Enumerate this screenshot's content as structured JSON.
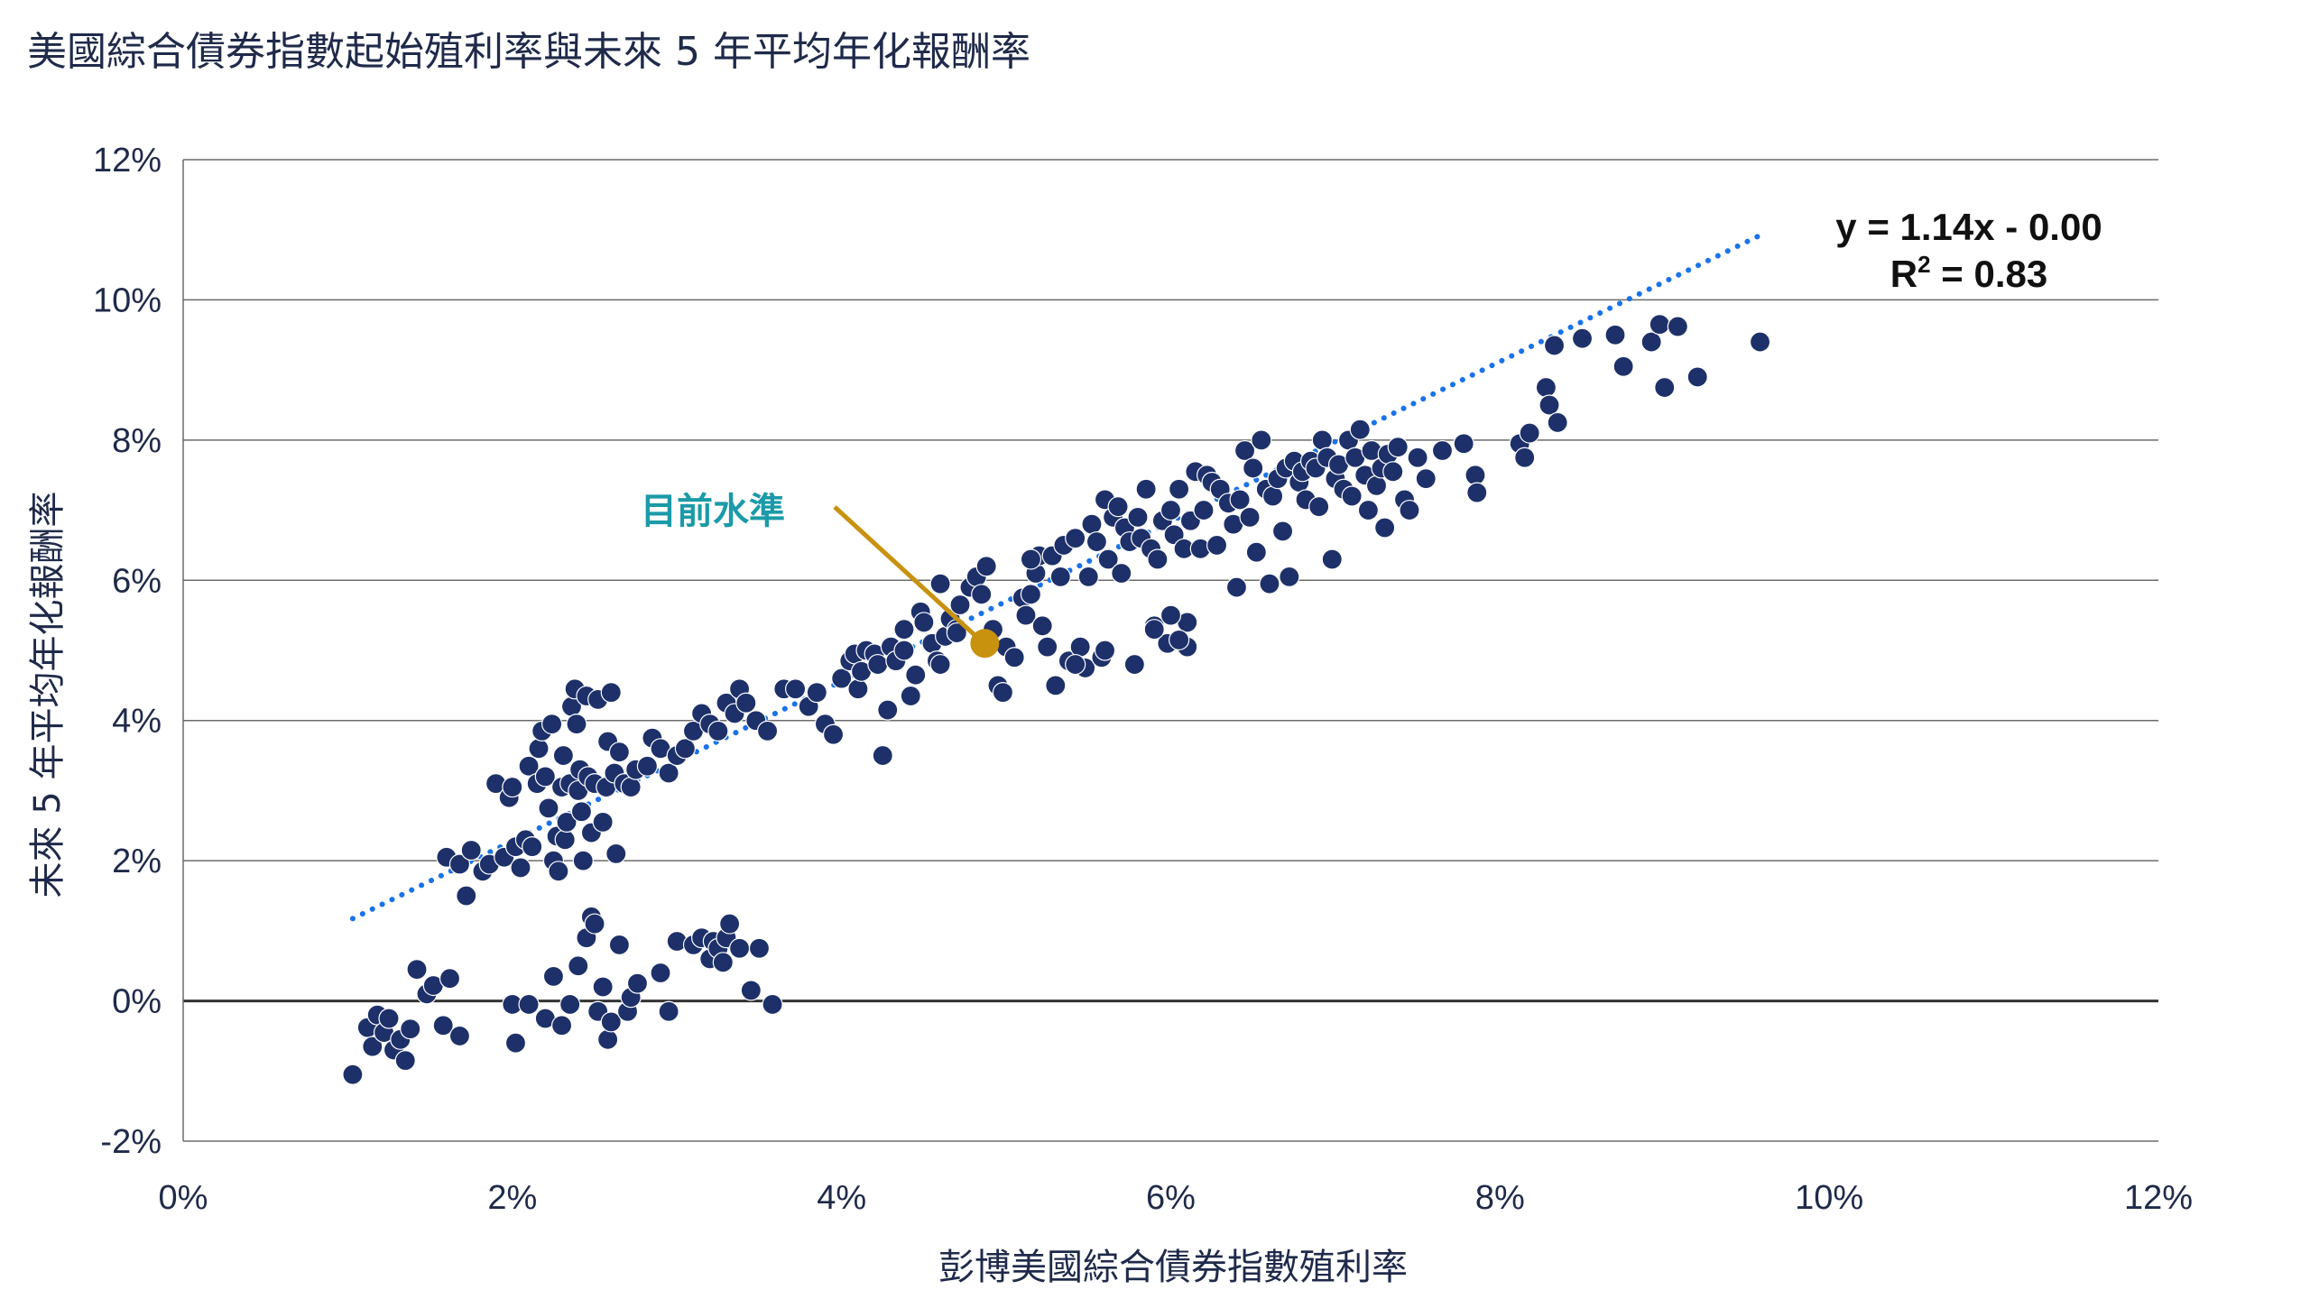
{
  "chart_data": {
    "type": "scatter",
    "title": "美國綜合債券指數起始殖利率與未來 5 年平均年化報酬率",
    "xlabel": "彭博美國綜合債券指數殖利率",
    "ylabel": "未來 5 年平均年化報酬率",
    "xlim": [
      0,
      12
    ],
    "ylim": [
      -2,
      12
    ],
    "x_ticks": [
      "0%",
      "2%",
      "4%",
      "6%",
      "8%",
      "10%",
      "12%"
    ],
    "y_ticks": [
      "12%",
      "10%",
      "8%",
      "6%",
      "4%",
      "2%",
      "0%",
      "-2%"
    ],
    "grid": "horizontal",
    "colors": {
      "points": "#1d3069",
      "trend": "#1a73e8",
      "highlight": "#c8920f",
      "annotation_text": "#1b9aa8",
      "grid": "#555555"
    },
    "trendline": {
      "slope": 1.14,
      "intercept": 0.0,
      "x_range": [
        1.03,
        9.58
      ],
      "style": "dotted"
    },
    "equation": {
      "line1": "y = 1.14x - 0.00",
      "line2_prefix": "R",
      "line2_sup": "2",
      "line2_suffix": " = 0.83"
    },
    "annotation": {
      "label": "目前水準",
      "x": 4.87,
      "y": 5.1
    },
    "points": [
      [
        1.03,
        -1.05
      ],
      [
        1.12,
        -0.38
      ],
      [
        1.15,
        -0.65
      ],
      [
        1.18,
        -0.2
      ],
      [
        1.22,
        -0.45
      ],
      [
        1.25,
        -0.25
      ],
      [
        1.28,
        -0.7
      ],
      [
        1.32,
        -0.55
      ],
      [
        1.35,
        -0.85
      ],
      [
        1.38,
        -0.4
      ],
      [
        1.42,
        0.45
      ],
      [
        1.48,
        0.1
      ],
      [
        1.52,
        0.22
      ],
      [
        1.58,
        -0.35
      ],
      [
        1.62,
        0.32
      ],
      [
        1.68,
        -0.5
      ],
      [
        1.6,
        2.05
      ],
      [
        1.68,
        1.95
      ],
      [
        1.72,
        1.5
      ],
      [
        1.75,
        2.15
      ],
      [
        1.82,
        1.85
      ],
      [
        1.86,
        1.95
      ],
      [
        1.9,
        3.1
      ],
      [
        1.95,
        2.05
      ],
      [
        1.98,
        2.9
      ],
      [
        2.0,
        3.05
      ],
      [
        2.02,
        2.2
      ],
      [
        2.05,
        1.9
      ],
      [
        2.08,
        2.3
      ],
      [
        2.1,
        3.35
      ],
      [
        2.12,
        2.2
      ],
      [
        2.15,
        3.1
      ],
      [
        2.16,
        3.6
      ],
      [
        2.18,
        3.85
      ],
      [
        2.2,
        3.2
      ],
      [
        2.22,
        2.75
      ],
      [
        2.24,
        3.95
      ],
      [
        2.25,
        2.0
      ],
      [
        2.27,
        2.35
      ],
      [
        2.28,
        1.85
      ],
      [
        2.3,
        3.05
      ],
      [
        2.31,
        3.5
      ],
      [
        2.32,
        2.3
      ],
      [
        2.33,
        2.55
      ],
      [
        2.35,
        3.1
      ],
      [
        2.36,
        4.2
      ],
      [
        2.38,
        4.45
      ],
      [
        2.39,
        3.95
      ],
      [
        2.4,
        3.0
      ],
      [
        2.41,
        3.3
      ],
      [
        2.42,
        2.7
      ],
      [
        2.43,
        2.0
      ],
      [
        2.45,
        4.35
      ],
      [
        2.46,
        3.2
      ],
      [
        2.48,
        2.4
      ],
      [
        2.5,
        3.1
      ],
      [
        2.52,
        4.3
      ],
      [
        2.55,
        2.55
      ],
      [
        2.57,
        3.05
      ],
      [
        2.58,
        3.7
      ],
      [
        2.6,
        4.4
      ],
      [
        2.62,
        3.25
      ],
      [
        2.63,
        2.1
      ],
      [
        2.65,
        3.55
      ],
      [
        2.68,
        3.1
      ],
      [
        2.72,
        3.05
      ],
      [
        2.75,
        3.3
      ],
      [
        2.82,
        3.35
      ],
      [
        2.85,
        3.75
      ],
      [
        2.9,
        3.6
      ],
      [
        2.95,
        3.25
      ],
      [
        3.0,
        3.5
      ],
      [
        3.05,
        3.6
      ],
      [
        3.1,
        3.85
      ],
      [
        3.15,
        4.1
      ],
      [
        3.2,
        3.95
      ],
      [
        3.25,
        3.85
      ],
      [
        3.3,
        4.25
      ],
      [
        3.35,
        4.1
      ],
      [
        3.38,
        4.45
      ],
      [
        3.42,
        4.25
      ],
      [
        3.48,
        4.0
      ],
      [
        3.55,
        3.85
      ],
      [
        3.65,
        4.45
      ],
      [
        3.72,
        4.45
      ],
      [
        3.8,
        4.2
      ],
      [
        3.85,
        4.4
      ],
      [
        3.9,
        3.95
      ],
      [
        3.95,
        3.8
      ],
      [
        4.0,
        4.6
      ],
      [
        4.05,
        4.85
      ],
      [
        4.08,
        4.95
      ],
      [
        4.1,
        4.45
      ],
      [
        4.12,
        4.7
      ],
      [
        4.15,
        5.0
      ],
      [
        4.2,
        4.95
      ],
      [
        4.22,
        4.8
      ],
      [
        4.25,
        3.5
      ],
      [
        4.28,
        4.15
      ],
      [
        4.3,
        5.05
      ],
      [
        4.33,
        4.85
      ],
      [
        4.38,
        5.0
      ],
      [
        4.42,
        4.35
      ],
      [
        4.45,
        4.65
      ],
      [
        4.48,
        5.55
      ],
      [
        4.5,
        5.4
      ],
      [
        4.55,
        5.1
      ],
      [
        4.58,
        4.85
      ],
      [
        4.6,
        5.95
      ],
      [
        4.63,
        5.2
      ],
      [
        4.66,
        5.45
      ],
      [
        4.7,
        5.3
      ],
      [
        4.72,
        5.65
      ],
      [
        4.78,
        5.9
      ],
      [
        4.82,
        6.05
      ],
      [
        4.85,
        5.8
      ],
      [
        4.88,
        6.2
      ],
      [
        4.92,
        5.3
      ],
      [
        4.95,
        4.5
      ],
      [
        4.98,
        4.4
      ],
      [
        5.0,
        5.05
      ],
      [
        5.05,
        4.9
      ],
      [
        5.1,
        5.75
      ],
      [
        5.12,
        5.5
      ],
      [
        5.15,
        5.8
      ],
      [
        5.18,
        6.1
      ],
      [
        5.2,
        6.35
      ],
      [
        5.22,
        5.35
      ],
      [
        5.25,
        5.05
      ],
      [
        5.28,
        6.35
      ],
      [
        5.3,
        4.5
      ],
      [
        5.33,
        6.05
      ],
      [
        5.35,
        6.5
      ],
      [
        5.38,
        4.85
      ],
      [
        5.42,
        6.6
      ],
      [
        5.45,
        5.05
      ],
      [
        5.48,
        4.75
      ],
      [
        5.5,
        6.05
      ],
      [
        5.52,
        6.8
      ],
      [
        5.55,
        6.55
      ],
      [
        5.58,
        4.9
      ],
      [
        5.6,
        7.15
      ],
      [
        5.62,
        6.3
      ],
      [
        5.65,
        6.9
      ],
      [
        5.68,
        7.05
      ],
      [
        5.7,
        6.1
      ],
      [
        5.72,
        6.75
      ],
      [
        5.75,
        6.55
      ],
      [
        5.78,
        4.8
      ],
      [
        5.8,
        6.9
      ],
      [
        5.82,
        6.6
      ],
      [
        5.85,
        7.3
      ],
      [
        5.88,
        6.45
      ],
      [
        5.9,
        5.35
      ],
      [
        5.92,
        6.3
      ],
      [
        5.95,
        6.85
      ],
      [
        5.98,
        5.1
      ],
      [
        6.0,
        7.0
      ],
      [
        6.02,
        6.65
      ],
      [
        6.05,
        7.3
      ],
      [
        6.08,
        6.45
      ],
      [
        6.1,
        5.05
      ],
      [
        6.12,
        6.85
      ],
      [
        6.15,
        7.55
      ],
      [
        6.18,
        6.45
      ],
      [
        6.2,
        7.0
      ],
      [
        6.22,
        7.5
      ],
      [
        6.25,
        7.4
      ],
      [
        6.28,
        6.5
      ],
      [
        6.3,
        7.3
      ],
      [
        6.35,
        7.1
      ],
      [
        6.38,
        6.8
      ],
      [
        6.4,
        5.9
      ],
      [
        6.42,
        7.15
      ],
      [
        6.45,
        7.85
      ],
      [
        6.48,
        6.9
      ],
      [
        6.5,
        7.6
      ],
      [
        6.52,
        6.4
      ],
      [
        6.55,
        8.0
      ],
      [
        6.58,
        7.3
      ],
      [
        6.6,
        5.95
      ],
      [
        6.62,
        7.2
      ],
      [
        6.65,
        7.45
      ],
      [
        6.68,
        6.7
      ],
      [
        6.7,
        7.6
      ],
      [
        6.72,
        6.05
      ],
      [
        6.75,
        7.7
      ],
      [
        6.78,
        7.4
      ],
      [
        6.8,
        7.55
      ],
      [
        6.82,
        7.15
      ],
      [
        6.85,
        7.7
      ],
      [
        6.88,
        7.6
      ],
      [
        6.9,
        7.05
      ],
      [
        6.92,
        8.0
      ],
      [
        6.95,
        7.75
      ],
      [
        6.98,
        6.3
      ],
      [
        7.0,
        7.45
      ],
      [
        7.02,
        7.65
      ],
      [
        7.05,
        7.3
      ],
      [
        7.08,
        8.0
      ],
      [
        7.1,
        7.2
      ],
      [
        7.12,
        7.75
      ],
      [
        7.15,
        8.15
      ],
      [
        7.18,
        7.5
      ],
      [
        7.2,
        7.0
      ],
      [
        7.22,
        7.85
      ],
      [
        7.25,
        7.35
      ],
      [
        7.28,
        7.6
      ],
      [
        7.3,
        6.75
      ],
      [
        7.32,
        7.8
      ],
      [
        7.35,
        7.55
      ],
      [
        7.38,
        7.9
      ],
      [
        7.42,
        7.15
      ],
      [
        7.45,
        7.0
      ],
      [
        7.5,
        7.75
      ],
      [
        7.55,
        7.45
      ],
      [
        7.65,
        7.85
      ],
      [
        7.78,
        7.95
      ],
      [
        7.85,
        7.5
      ],
      [
        7.86,
        7.25
      ],
      [
        8.12,
        7.95
      ],
      [
        8.15,
        7.75
      ],
      [
        8.18,
        8.1
      ],
      [
        8.28,
        8.75
      ],
      [
        8.3,
        8.5
      ],
      [
        8.33,
        9.35
      ],
      [
        8.35,
        8.25
      ],
      [
        8.5,
        9.45
      ],
      [
        8.7,
        9.5
      ],
      [
        8.75,
        9.05
      ],
      [
        8.92,
        9.4
      ],
      [
        8.97,
        9.65
      ],
      [
        9.0,
        8.75
      ],
      [
        9.08,
        9.62
      ],
      [
        9.2,
        8.9
      ],
      [
        9.58,
        9.4
      ],
      [
        6.1,
        5.4
      ],
      [
        6.05,
        5.15
      ],
      [
        5.9,
        5.3
      ],
      [
        6.0,
        5.5
      ],
      [
        5.6,
        5.0
      ],
      [
        5.42,
        4.8
      ],
      [
        4.6,
        4.8
      ],
      [
        4.7,
        5.25
      ],
      [
        4.38,
        5.3
      ],
      [
        5.15,
        6.3
      ],
      [
        2.0,
        -0.05
      ],
      [
        2.1,
        -0.05
      ],
      [
        2.2,
        -0.25
      ],
      [
        2.25,
        0.35
      ],
      [
        2.3,
        -0.35
      ],
      [
        2.35,
        -0.05
      ],
      [
        2.4,
        0.5
      ],
      [
        2.45,
        0.9
      ],
      [
        2.48,
        1.2
      ],
      [
        2.5,
        1.1
      ],
      [
        2.52,
        -0.15
      ],
      [
        2.55,
        0.2
      ],
      [
        2.58,
        -0.55
      ],
      [
        2.6,
        -0.3
      ],
      [
        2.65,
        0.8
      ],
      [
        2.7,
        -0.15
      ],
      [
        2.72,
        0.05
      ],
      [
        2.76,
        0.25
      ],
      [
        2.9,
        0.4
      ],
      [
        2.95,
        -0.15
      ],
      [
        3.0,
        0.85
      ],
      [
        3.1,
        0.8
      ],
      [
        3.15,
        0.9
      ],
      [
        3.2,
        0.6
      ],
      [
        3.22,
        0.85
      ],
      [
        3.25,
        0.75
      ],
      [
        3.28,
        0.55
      ],
      [
        3.3,
        0.9
      ],
      [
        3.32,
        1.1
      ],
      [
        3.38,
        0.75
      ],
      [
        3.45,
        0.15
      ],
      [
        3.5,
        0.75
      ],
      [
        3.58,
        -0.05
      ],
      [
        2.02,
        -0.6
      ]
    ]
  }
}
